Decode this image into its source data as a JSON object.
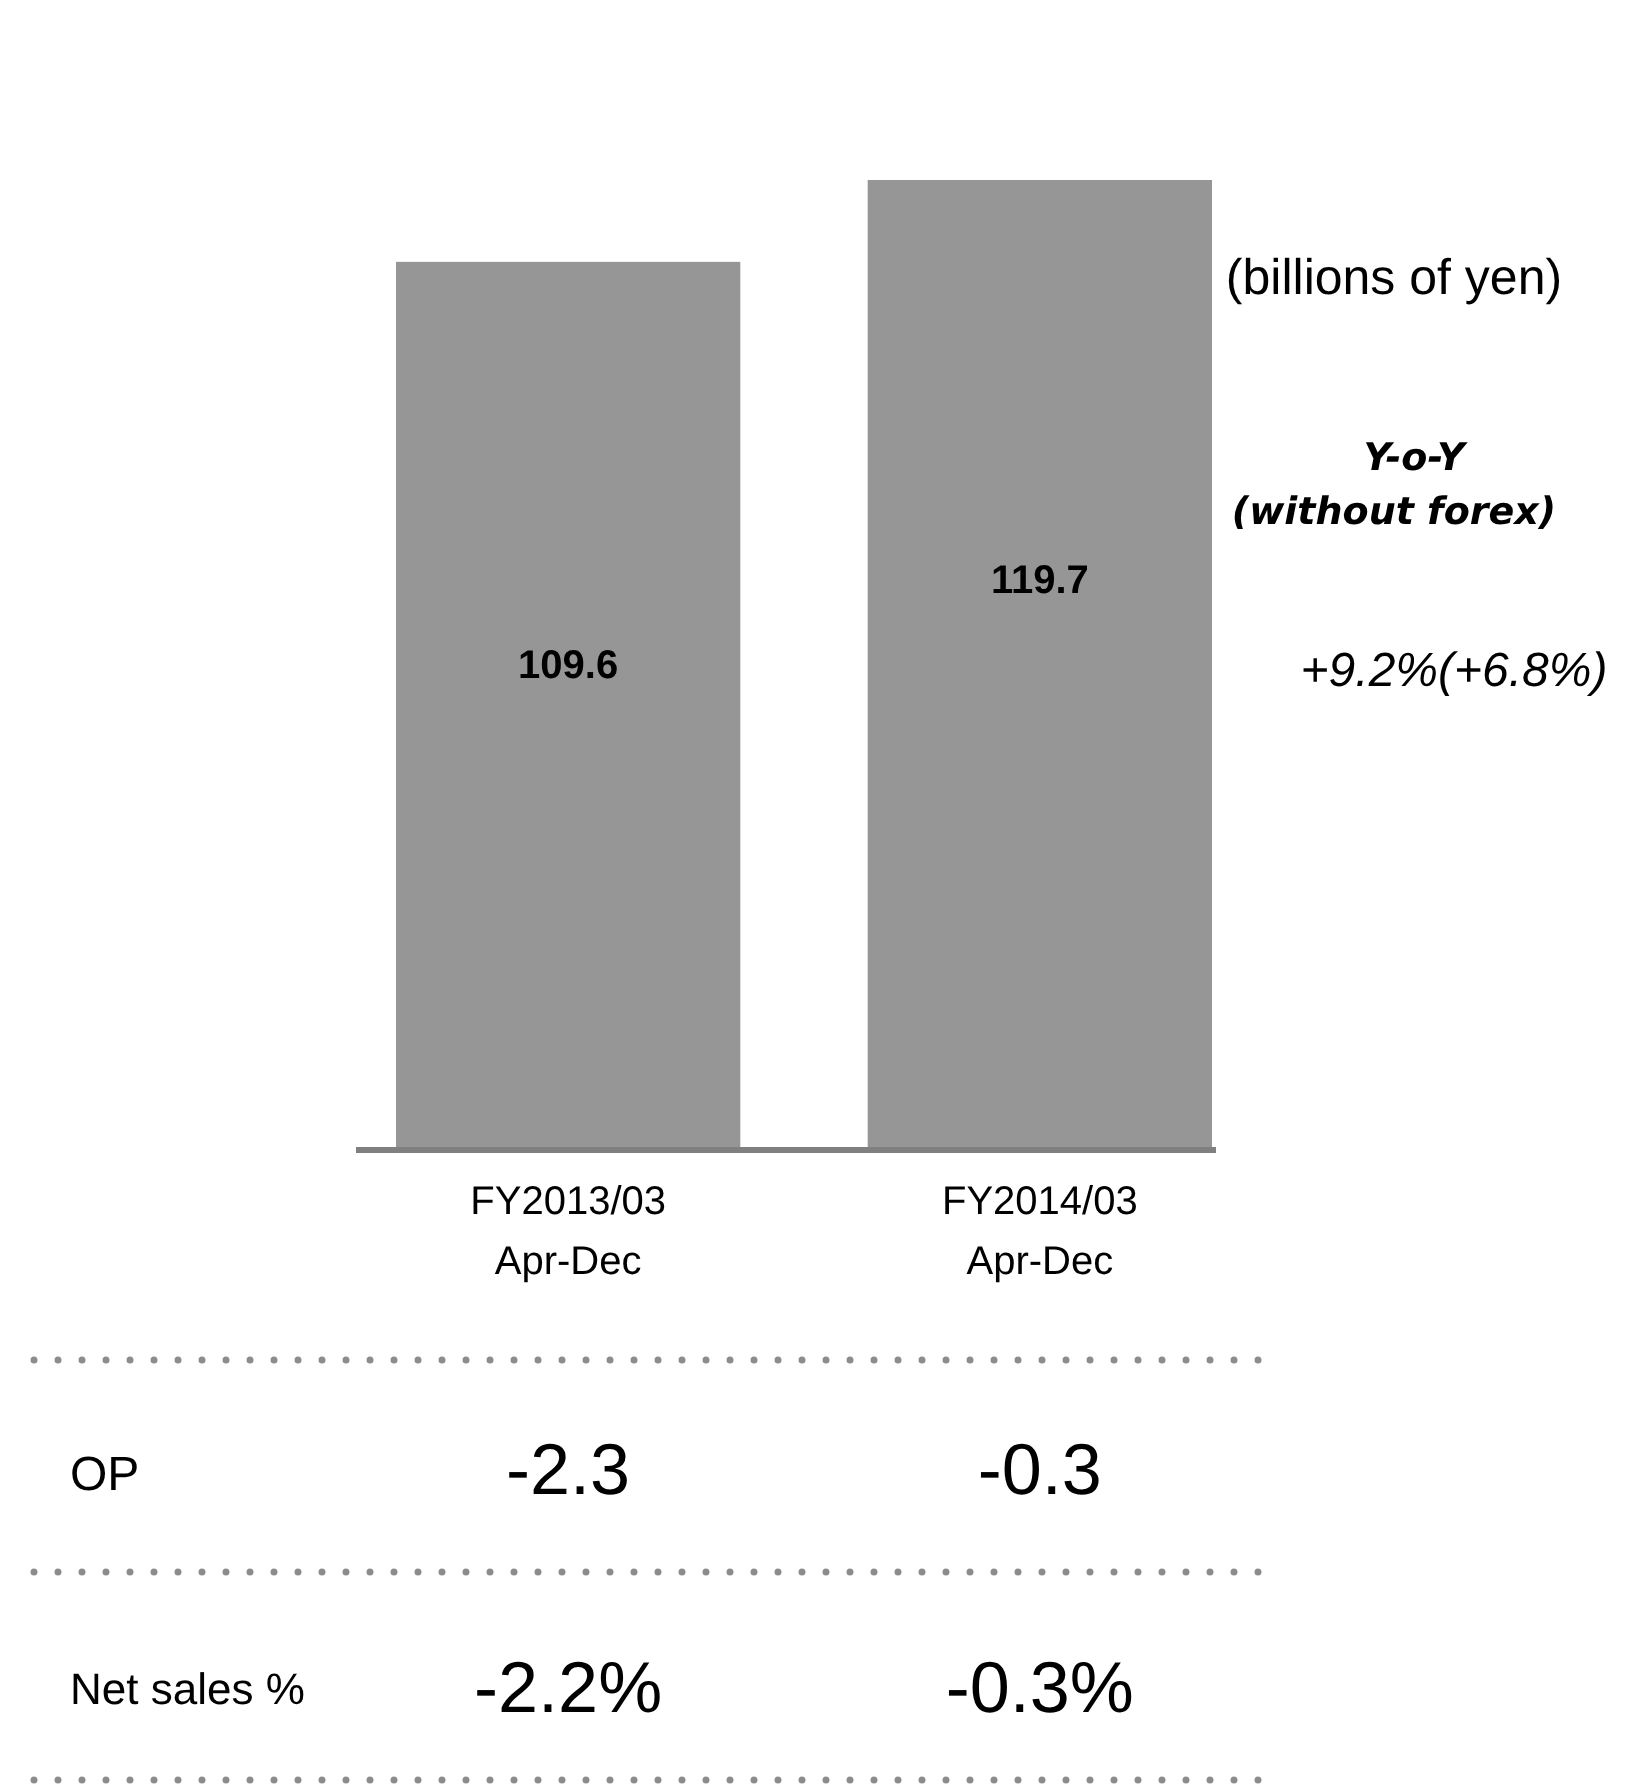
{
  "chart_data": {
    "type": "bar",
    "ylabel": "(billions of yen)",
    "categories": [
      "FY2013/03\nApr-Dec",
      "FY2014/03\nApr-Dec"
    ],
    "values": [
      109.6,
      119.7
    ],
    "color": "#969696",
    "data_labels": true,
    "tick_labels": "x",
    "annotations": [
      "Y-o-Y",
      "(without forex)",
      "+9.2%(+6.8%)",
      "OP",
      "-2.3",
      "-0.3",
      "Net sales %",
      "-2.2%",
      "-0.3%"
    ]
  }
}
